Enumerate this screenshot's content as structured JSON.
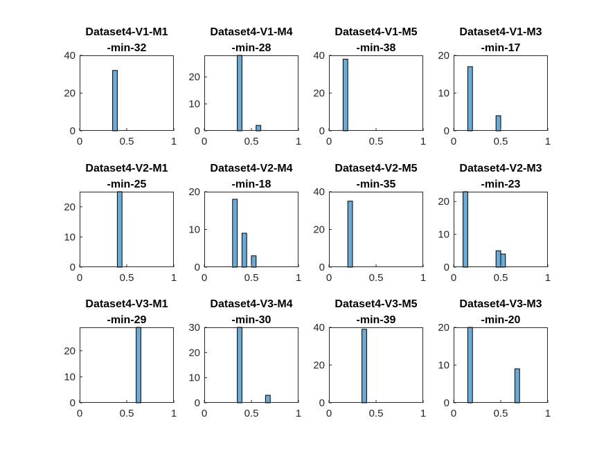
{
  "chart_data": [
    {
      "type": "bar",
      "title_line1": "Dataset4-V1-M1",
      "title_line2": "-min-32",
      "xlim": [
        0,
        1
      ],
      "ylim": [
        0,
        40
      ],
      "xticks": [
        "0",
        "0.5",
        "1"
      ],
      "yticks": [
        0,
        20,
        40
      ],
      "bin_width": 0.05,
      "bars": [
        {
          "x": 0.35,
          "value": 32
        }
      ]
    },
    {
      "type": "bar",
      "title_line1": "Dataset4-V1-M4",
      "title_line2": "-min-28",
      "xlim": [
        0,
        1
      ],
      "ylim": [
        0,
        28
      ],
      "xticks": [
        "0",
        "0.5",
        "1"
      ],
      "yticks": [
        0,
        10,
        20
      ],
      "bin_width": 0.05,
      "bars": [
        {
          "x": 0.35,
          "value": 28
        },
        {
          "x": 0.55,
          "value": 2
        }
      ]
    },
    {
      "type": "bar",
      "title_line1": "Dataset4-V1-M5",
      "title_line2": "-min-38",
      "xlim": [
        0,
        1
      ],
      "ylim": [
        0,
        40
      ],
      "xticks": [
        "0",
        "0.5",
        "1"
      ],
      "yticks": [
        0,
        20,
        40
      ],
      "bin_width": 0.05,
      "bars": [
        {
          "x": 0.15,
          "value": 38
        }
      ]
    },
    {
      "type": "bar",
      "title_line1": "Dataset4-V1-M3",
      "title_line2": "-min-17",
      "xlim": [
        0,
        1
      ],
      "ylim": [
        0,
        20
      ],
      "xticks": [
        "0",
        "0.5",
        "1"
      ],
      "yticks": [
        0,
        10,
        20
      ],
      "bin_width": 0.05,
      "bars": [
        {
          "x": 0.15,
          "value": 17
        },
        {
          "x": 0.45,
          "value": 4
        }
      ]
    },
    {
      "type": "bar",
      "title_line1": "Dataset4-V2-M1",
      "title_line2": "-min-25",
      "xlim": [
        0,
        1
      ],
      "ylim": [
        0,
        25
      ],
      "xticks": [
        "0",
        "0.5",
        "1"
      ],
      "yticks": [
        0,
        10,
        20
      ],
      "bin_width": 0.05,
      "bars": [
        {
          "x": 0.4,
          "value": 25
        }
      ]
    },
    {
      "type": "bar",
      "title_line1": "Dataset4-V2-M4",
      "title_line2": "-min-18",
      "xlim": [
        0,
        1
      ],
      "ylim": [
        0,
        20
      ],
      "xticks": [
        "0",
        "0.5",
        "1"
      ],
      "yticks": [
        0,
        10,
        20
      ],
      "bin_width": 0.05,
      "bars": [
        {
          "x": 0.3,
          "value": 18
        },
        {
          "x": 0.4,
          "value": 9
        },
        {
          "x": 0.5,
          "value": 3
        }
      ]
    },
    {
      "type": "bar",
      "title_line1": "Dataset4-V2-M5",
      "title_line2": "-min-35",
      "xlim": [
        0,
        1
      ],
      "ylim": [
        0,
        40
      ],
      "xticks": [
        "0",
        "0.5",
        "1"
      ],
      "yticks": [
        0,
        20,
        40
      ],
      "bin_width": 0.05,
      "bars": [
        {
          "x": 0.2,
          "value": 35
        }
      ]
    },
    {
      "type": "bar",
      "title_line1": "Dataset4-V2-M3",
      "title_line2": "-min-23",
      "xlim": [
        0,
        1
      ],
      "ylim": [
        0,
        23
      ],
      "xticks": [
        "0",
        "0.5",
        "1"
      ],
      "yticks": [
        0,
        10,
        20
      ],
      "bin_width": 0.05,
      "bars": [
        {
          "x": 0.1,
          "value": 23
        },
        {
          "x": 0.45,
          "value": 5
        },
        {
          "x": 0.5,
          "value": 4
        }
      ]
    },
    {
      "type": "bar",
      "title_line1": "Dataset4-V3-M1",
      "title_line2": "-min-29",
      "xlim": [
        0,
        1
      ],
      "ylim": [
        0,
        29
      ],
      "xticks": [
        "0",
        "0.5",
        "1"
      ],
      "yticks": [
        0,
        10,
        20
      ],
      "bin_width": 0.05,
      "bars": [
        {
          "x": 0.6,
          "value": 29
        }
      ]
    },
    {
      "type": "bar",
      "title_line1": "Dataset4-V3-M4",
      "title_line2": "-min-30",
      "xlim": [
        0,
        1
      ],
      "ylim": [
        0,
        30
      ],
      "xticks": [
        "0",
        "0.5",
        "1"
      ],
      "yticks": [
        0,
        10,
        20,
        30
      ],
      "bin_width": 0.05,
      "bars": [
        {
          "x": 0.35,
          "value": 30
        },
        {
          "x": 0.65,
          "value": 3
        }
      ]
    },
    {
      "type": "bar",
      "title_line1": "Dataset4-V3-M5",
      "title_line2": "-min-39",
      "xlim": [
        0,
        1
      ],
      "ylim": [
        0,
        40
      ],
      "xticks": [
        "0",
        "0.5",
        "1"
      ],
      "yticks": [
        0,
        20,
        40
      ],
      "bin_width": 0.05,
      "bars": [
        {
          "x": 0.35,
          "value": 39
        }
      ]
    },
    {
      "type": "bar",
      "title_line1": "Dataset4-V3-M3",
      "title_line2": "-min-20",
      "xlim": [
        0,
        1
      ],
      "ylim": [
        0,
        20
      ],
      "xticks": [
        "0",
        "0.5",
        "1"
      ],
      "yticks": [
        0,
        10,
        20
      ],
      "bin_width": 0.05,
      "bars": [
        {
          "x": 0.15,
          "value": 20
        },
        {
          "x": 0.65,
          "value": 9
        }
      ]
    }
  ],
  "colors": {
    "bar_fill": "#4d9bd1",
    "bar_edge": "#000000",
    "axis": "#262626",
    "background": "#ffffff"
  }
}
